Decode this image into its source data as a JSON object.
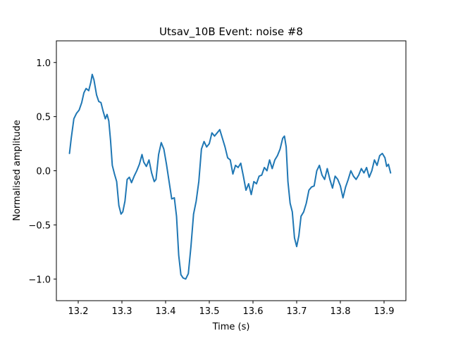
{
  "chart_data": {
    "type": "line",
    "title": "Utsav_10B Event: noise #8",
    "xlabel": "Time (s)",
    "ylabel": "Normalised amplitude",
    "xlim": [
      13.15,
      13.95
    ],
    "ylim": [
      -1.2,
      1.2
    ],
    "x_ticks": [
      13.2,
      13.3,
      13.4,
      13.5,
      13.6,
      13.7,
      13.8,
      13.9
    ],
    "x_tick_labels": [
      "13.2",
      "13.3",
      "13.4",
      "13.5",
      "13.6",
      "13.7",
      "13.8",
      "13.9"
    ],
    "y_ticks": [
      1.0,
      0.5,
      0.0,
      -0.5,
      -1.0
    ],
    "y_tick_labels": [
      "1.0",
      "0.5",
      "0.0",
      "−0.5",
      "−1.0"
    ],
    "grid": false,
    "series": [
      {
        "color": "#1f77b4",
        "points": [
          [
            13.18,
            0.16
          ],
          [
            13.184,
            0.3
          ],
          [
            13.19,
            0.48
          ],
          [
            13.196,
            0.53
          ],
          [
            13.202,
            0.56
          ],
          [
            13.208,
            0.63
          ],
          [
            13.213,
            0.72
          ],
          [
            13.218,
            0.76
          ],
          [
            13.224,
            0.74
          ],
          [
            13.229,
            0.82
          ],
          [
            13.232,
            0.89
          ],
          [
            13.236,
            0.84
          ],
          [
            13.242,
            0.7
          ],
          [
            13.247,
            0.64
          ],
          [
            13.252,
            0.63
          ],
          [
            13.257,
            0.55
          ],
          [
            13.262,
            0.48
          ],
          [
            13.266,
            0.52
          ],
          [
            13.27,
            0.46
          ],
          [
            13.274,
            0.28
          ],
          [
            13.278,
            0.05
          ],
          [
            13.283,
            -0.03
          ],
          [
            13.288,
            -0.1
          ],
          [
            13.293,
            -0.32
          ],
          [
            13.298,
            -0.4
          ],
          [
            13.302,
            -0.38
          ],
          [
            13.307,
            -0.28
          ],
          [
            13.312,
            -0.08
          ],
          [
            13.317,
            -0.06
          ],
          [
            13.322,
            -0.11
          ],
          [
            13.328,
            -0.05
          ],
          [
            13.334,
            0.0
          ],
          [
            13.34,
            0.06
          ],
          [
            13.346,
            0.15
          ],
          [
            13.35,
            0.08
          ],
          [
            13.356,
            0.04
          ],
          [
            13.362,
            0.1
          ],
          [
            13.368,
            -0.02
          ],
          [
            13.374,
            -0.1
          ],
          [
            13.378,
            -0.08
          ],
          [
            13.384,
            0.15
          ],
          [
            13.39,
            0.26
          ],
          [
            13.396,
            0.2
          ],
          [
            13.402,
            0.06
          ],
          [
            13.408,
            -0.1
          ],
          [
            13.414,
            -0.26
          ],
          [
            13.42,
            -0.25
          ],
          [
            13.425,
            -0.42
          ],
          [
            13.43,
            -0.78
          ],
          [
            13.435,
            -0.96
          ],
          [
            13.44,
            -0.99
          ],
          [
            13.446,
            -1.0
          ],
          [
            13.452,
            -0.95
          ],
          [
            13.458,
            -0.7
          ],
          [
            13.464,
            -0.4
          ],
          [
            13.47,
            -0.28
          ],
          [
            13.476,
            -0.1
          ],
          [
            13.482,
            0.2
          ],
          [
            13.488,
            0.27
          ],
          [
            13.494,
            0.22
          ],
          [
            13.5,
            0.25
          ],
          [
            13.506,
            0.35
          ],
          [
            13.512,
            0.32
          ],
          [
            13.518,
            0.35
          ],
          [
            13.524,
            0.38
          ],
          [
            13.53,
            0.3
          ],
          [
            13.536,
            0.22
          ],
          [
            13.542,
            0.12
          ],
          [
            13.548,
            0.1
          ],
          [
            13.554,
            -0.03
          ],
          [
            13.56,
            0.05
          ],
          [
            13.566,
            0.03
          ],
          [
            13.572,
            0.07
          ],
          [
            13.578,
            -0.05
          ],
          [
            13.584,
            -0.18
          ],
          [
            13.59,
            -0.12
          ],
          [
            13.596,
            -0.22
          ],
          [
            13.602,
            -0.1
          ],
          [
            13.608,
            -0.12
          ],
          [
            13.614,
            -0.05
          ],
          [
            13.62,
            -0.04
          ],
          [
            13.626,
            0.03
          ],
          [
            13.632,
            0.0
          ],
          [
            13.638,
            0.1
          ],
          [
            13.644,
            0.02
          ],
          [
            13.65,
            0.1
          ],
          [
            13.656,
            0.14
          ],
          [
            13.662,
            0.2
          ],
          [
            13.668,
            0.3
          ],
          [
            13.672,
            0.32
          ],
          [
            13.676,
            0.22
          ],
          [
            13.68,
            -0.1
          ],
          [
            13.685,
            -0.3
          ],
          [
            13.69,
            -0.38
          ],
          [
            13.695,
            -0.62
          ],
          [
            13.7,
            -0.7
          ],
          [
            13.705,
            -0.6
          ],
          [
            13.71,
            -0.42
          ],
          [
            13.716,
            -0.38
          ],
          [
            13.722,
            -0.3
          ],
          [
            13.728,
            -0.18
          ],
          [
            13.734,
            -0.15
          ],
          [
            13.74,
            -0.14
          ],
          [
            13.746,
            0.0
          ],
          [
            13.752,
            0.05
          ],
          [
            13.758,
            -0.04
          ],
          [
            13.764,
            -0.08
          ],
          [
            13.77,
            0.02
          ],
          [
            13.776,
            -0.08
          ],
          [
            13.782,
            -0.16
          ],
          [
            13.788,
            -0.05
          ],
          [
            13.794,
            -0.08
          ],
          [
            13.8,
            -0.14
          ],
          [
            13.806,
            -0.25
          ],
          [
            13.812,
            -0.15
          ],
          [
            13.818,
            -0.08
          ],
          [
            13.824,
            0.0
          ],
          [
            13.83,
            -0.05
          ],
          [
            13.836,
            -0.08
          ],
          [
            13.842,
            -0.04
          ],
          [
            13.848,
            0.02
          ],
          [
            13.854,
            -0.02
          ],
          [
            13.86,
            0.03
          ],
          [
            13.866,
            -0.06
          ],
          [
            13.872,
            0.0
          ],
          [
            13.878,
            0.1
          ],
          [
            13.884,
            0.05
          ],
          [
            13.89,
            0.14
          ],
          [
            13.896,
            0.16
          ],
          [
            13.902,
            0.12
          ],
          [
            13.906,
            0.04
          ],
          [
            13.91,
            0.06
          ],
          [
            13.915,
            -0.02
          ]
        ]
      }
    ]
  }
}
